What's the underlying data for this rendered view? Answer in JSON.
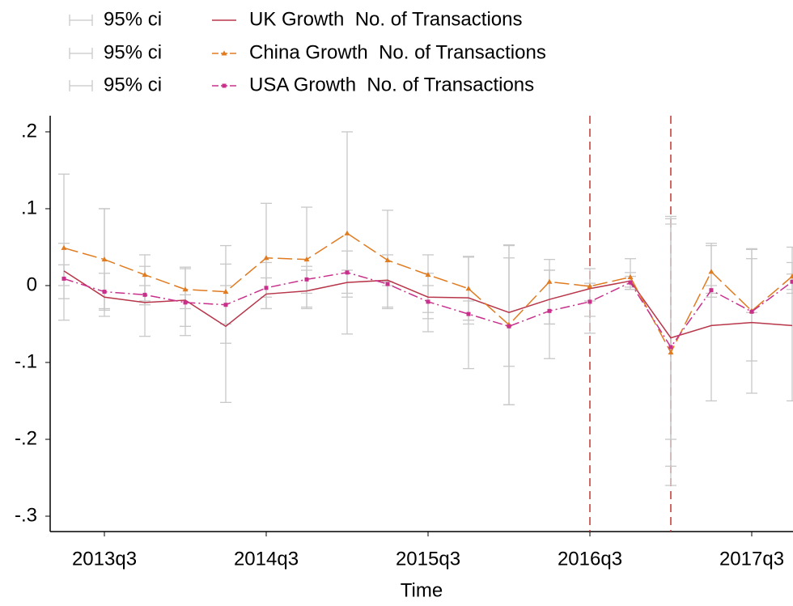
{
  "chart_data": {
    "type": "line",
    "x_label": "Time",
    "x": [
      213,
      214,
      215,
      216,
      217,
      218,
      219,
      220,
      221,
      222,
      223,
      224,
      225,
      226,
      227,
      228,
      229,
      230,
      231
    ],
    "xlim": [
      212.66,
      231.02
    ],
    "xticks": [
      {
        "value": 214,
        "label": "2013q3"
      },
      {
        "value": 218,
        "label": "2014q3"
      },
      {
        "value": 222,
        "label": "2015q3"
      },
      {
        "value": 226,
        "label": "2016q3"
      },
      {
        "value": 230,
        "label": "2017q3"
      }
    ],
    "ylim": [
      -0.32,
      0.221
    ],
    "yticks": [
      {
        "value": 0.2,
        "label": ".2"
      },
      {
        "value": 0.1,
        "label": ".1"
      },
      0,
      {
        "value": -0.1,
        "label": "-.1"
      },
      {
        "value": -0.2,
        "label": "-.2"
      },
      {
        "value": -0.3,
        "label": "-.3"
      }
    ],
    "vlines": [
      226,
      228
    ],
    "vline_color": "#c0392b",
    "ci_color": "#c8c8c8",
    "intervals": [
      {
        "name": "95% ci",
        "lower": [
          -0.045,
          -0.04,
          -0.066,
          -0.065,
          -0.152,
          -0.03,
          -0.028,
          -0.01,
          -0.028,
          -0.06,
          -0.108,
          -0.155,
          -0.095,
          -0.062,
          -0.002,
          -0.26,
          -0.15,
          -0.14,
          -0.15
        ],
        "upper": [
          0.145,
          0.1,
          0.04,
          0.024,
          0.052,
          0.03,
          0.02,
          0.02,
          0.04,
          0.04,
          0.038,
          0.052,
          0.02,
          0.022,
          0.017,
          0.09,
          0.052,
          0.047,
          0.05
        ]
      },
      {
        "name": "95% ci",
        "lower": [
          0.0,
          -0.03,
          -0.025,
          -0.053,
          -0.075,
          -0.03,
          -0.03,
          -0.063,
          -0.03,
          -0.043,
          -0.045,
          -0.155,
          -0.05,
          -0.02,
          -0.005,
          -0.235,
          -0.015,
          -0.098,
          -0.005
        ],
        "upper": [
          0.055,
          0.1,
          0.025,
          0.022,
          0.028,
          0.107,
          0.102,
          0.2,
          0.098,
          0.016,
          0.037,
          0.053,
          0.034,
          0.003,
          0.035,
          0.087,
          0.055,
          0.048,
          0.03
        ]
      },
      {
        "name": "95% ci",
        "lower": [
          -0.017,
          -0.032,
          -0.02,
          -0.03,
          -0.05,
          -0.015,
          -0.01,
          -0.015,
          0.0,
          -0.035,
          -0.05,
          -0.105,
          -0.05,
          -0.04,
          -0.005,
          -0.2,
          -0.01,
          -0.035,
          -0.01
        ],
        "upper": [
          0.027,
          0.016,
          0.0,
          -0.012,
          0.0,
          0.01,
          0.025,
          0.045,
          0.005,
          0.0,
          -0.02,
          0.036,
          0.02,
          0.0,
          0.012,
          0.08,
          0.0,
          0.035,
          0.015
        ]
      }
    ],
    "series": [
      {
        "name": "UK Growth  No. of Transactions",
        "color": "#b8364a",
        "dash": "none",
        "marker": "none",
        "values": [
          0.019,
          -0.015,
          -0.022,
          -0.019,
          -0.053,
          -0.011,
          -0.007,
          0.004,
          0.007,
          -0.015,
          -0.016,
          -0.035,
          -0.018,
          -0.004,
          0.006,
          -0.068,
          -0.052,
          -0.048,
          -0.052
        ]
      },
      {
        "name": "China Growth  No. of Transactions",
        "color": "#e07b20",
        "dash": "18 6",
        "marker": "triangle",
        "values": [
          0.049,
          0.034,
          0.014,
          -0.005,
          -0.008,
          0.036,
          0.034,
          0.068,
          0.033,
          0.014,
          -0.004,
          -0.051,
          0.005,
          -0.001,
          0.011,
          -0.087,
          0.018,
          -0.033,
          0.012
        ]
      },
      {
        "name": "USA Growth  No. of Transactions",
        "color": "#c8308c",
        "dash": "12 4 2 4",
        "marker": "square",
        "values": [
          0.009,
          -0.008,
          -0.012,
          -0.022,
          -0.025,
          -0.003,
          0.008,
          0.017,
          0.002,
          -0.021,
          -0.037,
          -0.053,
          -0.033,
          -0.021,
          0.004,
          -0.08,
          -0.006,
          -0.034,
          0.005
        ]
      }
    ]
  }
}
